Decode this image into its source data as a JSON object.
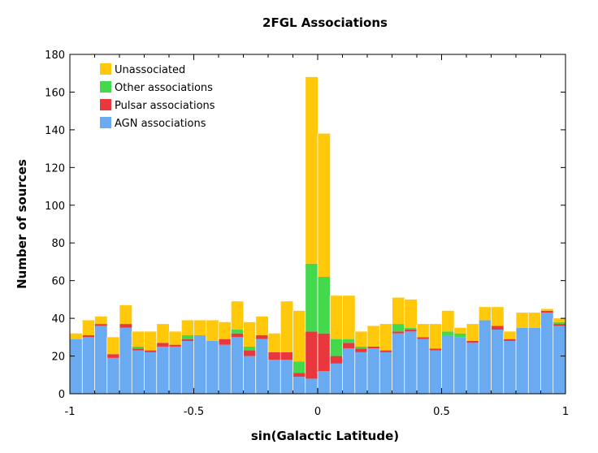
{
  "chart_data": {
    "type": "bar",
    "stacked": true,
    "title": "2FGL Associations",
    "xlabel": "sin(Galactic Latitude)",
    "ylabel": "Number of sources",
    "xlim": [
      -1,
      1
    ],
    "ylim": [
      0,
      180
    ],
    "xticks": [
      -1,
      -0.5,
      0,
      0.5,
      1
    ],
    "xtick_labels": [
      "-1",
      "-0.5",
      "0",
      "0.5",
      "1"
    ],
    "yticks": [
      0,
      20,
      40,
      60,
      80,
      100,
      120,
      140,
      160,
      180
    ],
    "ytick_labels": [
      "0",
      "20",
      "40",
      "60",
      "80",
      "100",
      "120",
      "140",
      "160",
      "180"
    ],
    "bin_width": 0.05,
    "bin_starts": [
      -1.0,
      -0.95,
      -0.9,
      -0.85,
      -0.8,
      -0.75,
      -0.7,
      -0.65,
      -0.6,
      -0.55,
      -0.5,
      -0.45,
      -0.4,
      -0.35,
      -0.3,
      -0.25,
      -0.2,
      -0.15,
      -0.1,
      -0.05,
      0.0,
      0.05,
      0.1,
      0.15,
      0.2,
      0.25,
      0.3,
      0.35,
      0.4,
      0.45,
      0.5,
      0.55,
      0.6,
      0.65,
      0.7,
      0.75,
      0.8,
      0.85,
      0.9,
      0.95
    ],
    "legend_position": "top-left",
    "series": [
      {
        "name": "AGN associations",
        "color": "#6aaaf0",
        "values": [
          29,
          30,
          36,
          19,
          35,
          23,
          22,
          25,
          25,
          28,
          31,
          28,
          26,
          30,
          20,
          29,
          18,
          18,
          9,
          8,
          12,
          16,
          24,
          22,
          24,
          22,
          32,
          33,
          29,
          23,
          31,
          30,
          27,
          39,
          34,
          28,
          35,
          35,
          43,
          36
        ]
      },
      {
        "name": "Pulsar associations",
        "color": "#e8383d",
        "values": [
          0,
          1,
          1,
          2,
          2,
          1,
          1,
          2,
          1,
          1,
          0,
          0,
          3,
          2,
          3,
          2,
          4,
          4,
          2,
          25,
          20,
          4,
          3,
          2,
          1,
          1,
          1,
          1,
          1,
          1,
          0,
          0,
          1,
          0,
          2,
          1,
          0,
          0,
          1,
          1
        ]
      },
      {
        "name": "Other associations",
        "color": "#44d84c",
        "values": [
          0,
          0,
          0,
          0,
          0,
          1,
          0,
          0,
          0,
          2,
          0,
          0,
          0,
          2,
          2,
          0,
          0,
          0,
          6,
          36,
          30,
          9,
          2,
          1,
          0,
          0,
          4,
          1,
          0,
          0,
          2,
          2,
          0,
          0,
          0,
          0,
          0,
          0,
          0,
          1
        ]
      },
      {
        "name": "Unassociated",
        "color": "#ffc80a",
        "values": [
          3,
          8,
          4,
          9,
          10,
          8,
          10,
          10,
          7,
          8,
          8,
          11,
          9,
          15,
          13,
          10,
          10,
          27,
          27,
          99,
          76,
          23,
          23,
          8,
          11,
          14,
          14,
          15,
          7,
          13,
          11,
          3,
          9,
          7,
          10,
          4,
          8,
          8,
          1,
          2
        ]
      }
    ],
    "legend_order": [
      "Unassociated",
      "Other associations",
      "Pulsar associations",
      "AGN associations"
    ]
  }
}
